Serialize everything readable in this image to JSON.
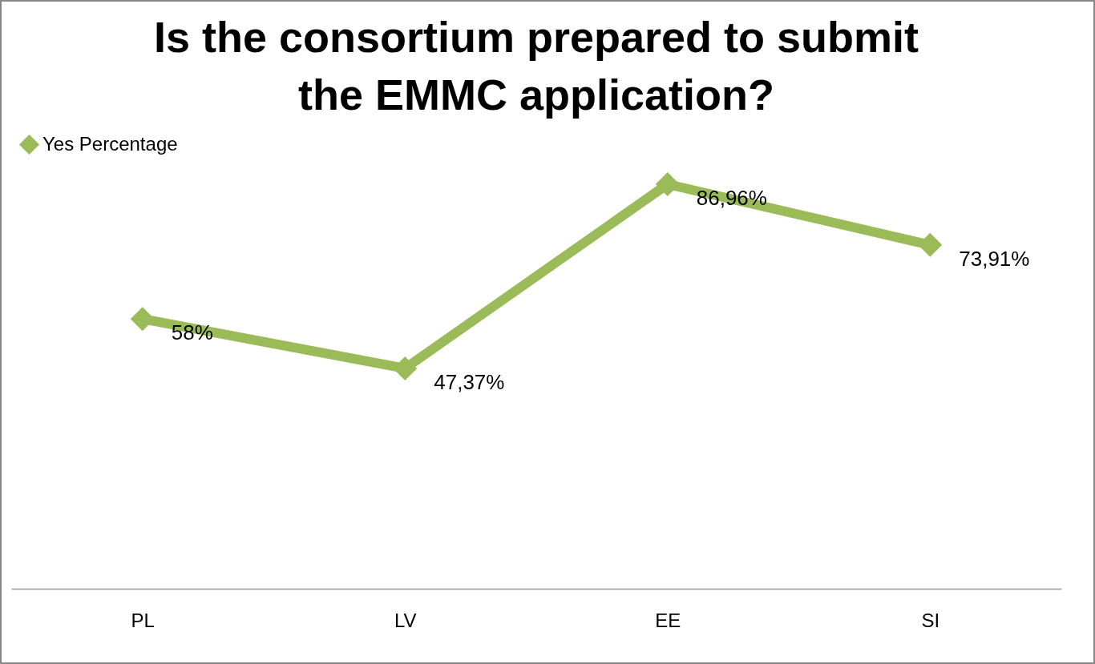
{
  "chart_data": {
    "type": "line",
    "title": [
      "Is the consortium prepared to submit",
      "the EMMC application?"
    ],
    "categories": [
      "PL",
      "LV",
      "EE",
      "SI"
    ],
    "series": [
      {
        "name": "Yes Percentage",
        "color": "#9bbb59",
        "values": [
          58,
          47.37,
          86.96,
          73.91
        ],
        "value_labels": [
          "58%",
          "47,37%",
          "86,96%",
          "73,91%"
        ]
      }
    ],
    "tick_labels": "x",
    "grid": false,
    "legend": "top",
    "marker": "diamond",
    "line_style": "solid"
  }
}
